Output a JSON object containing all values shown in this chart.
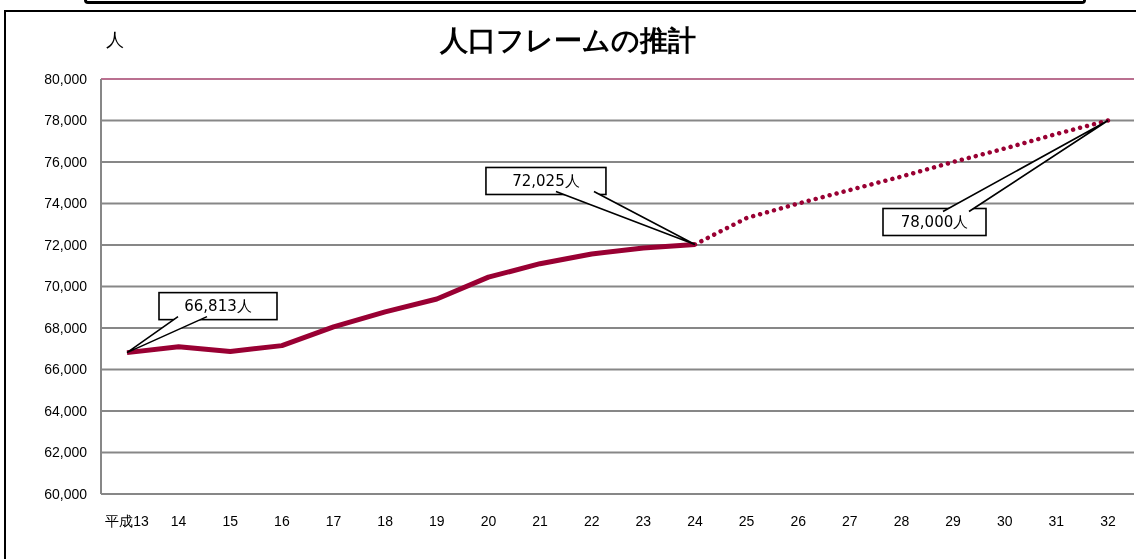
{
  "chart_data": {
    "type": "line",
    "title": "人口フレームの推計",
    "ylabel": "人",
    "categories": [
      "平成13",
      "14",
      "15",
      "16",
      "17",
      "18",
      "19",
      "20",
      "21",
      "22",
      "23",
      "24",
      "25",
      "26",
      "27",
      "28",
      "29",
      "30",
      "31",
      "32"
    ],
    "series": [
      {
        "color": "#990033",
        "line_style": "solid",
        "values": [
          66813,
          67100,
          66870,
          67150,
          68050,
          68780,
          69400,
          70450,
          71100,
          71570,
          71860,
          72025,
          null,
          null,
          null,
          null,
          null,
          null,
          null,
          null
        ]
      },
      {
        "color": "#990033",
        "line_style": "dotted",
        "values": [
          null,
          null,
          null,
          null,
          null,
          null,
          null,
          null,
          null,
          null,
          null,
          72025,
          73300,
          74000,
          74650,
          75300,
          76000,
          76650,
          77350,
          78000
        ]
      }
    ],
    "ylim": [
      60000,
      80000
    ],
    "yticks": [
      {
        "value": 60000,
        "label": "60,000"
      },
      {
        "value": 62000,
        "label": "62,000"
      },
      {
        "value": 64000,
        "label": "64,000"
      },
      {
        "value": 66000,
        "label": "66,000"
      },
      {
        "value": 68000,
        "label": "68,000"
      },
      {
        "value": 70000,
        "label": "70,000"
      },
      {
        "value": 72000,
        "label": "72,000"
      },
      {
        "value": 74000,
        "label": "74,000"
      },
      {
        "value": 76000,
        "label": "76,000"
      },
      {
        "value": 78000,
        "label": "78,000"
      },
      {
        "value": 80000,
        "label": "80,000"
      }
    ],
    "grid": "y",
    "annotations": [
      {
        "text": "66,813人",
        "x": "平成13",
        "y": 66813
      },
      {
        "text": "72,025人",
        "x": "24",
        "y": 72025
      },
      "78,000人"
    ]
  }
}
